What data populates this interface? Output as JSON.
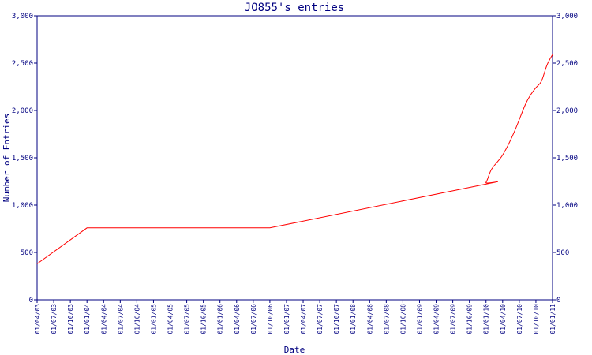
{
  "chart_data": {
    "type": "line",
    "title": "JO855's entries",
    "xlabel": "Date",
    "ylabel": "Number of Entries",
    "ylim": [
      0,
      3000
    ],
    "yticks": [
      0,
      500,
      1000,
      1500,
      2000,
      2500,
      3000
    ],
    "ytick_labels": [
      "0",
      "500",
      "1,000",
      "1,500",
      "2,000",
      "2,500",
      "3,000"
    ],
    "xticks": [
      "01/04/03",
      "01/07/03",
      "01/10/03",
      "01/01/04",
      "01/04/04",
      "01/07/04",
      "01/10/04",
      "01/01/05",
      "01/04/05",
      "01/07/05",
      "01/10/05",
      "01/01/06",
      "01/04/06",
      "01/07/06",
      "01/10/06",
      "01/01/07",
      "01/04/07",
      "01/07/07",
      "01/10/07",
      "01/01/08",
      "01/04/08",
      "01/07/08",
      "01/10/08",
      "01/01/09",
      "01/04/09",
      "01/07/09",
      "01/10/09",
      "01/01/10",
      "01/04/10",
      "01/07/10",
      "01/10/10",
      "01/01/11"
    ],
    "x_range": [
      "01/04/03",
      "01/01/11"
    ],
    "grid": false,
    "series_color": "#ff0000",
    "axis_color": "#000080",
    "points": [
      {
        "x": "01/04/03",
        "y": 380
      },
      {
        "x": "01/01/04",
        "y": 760
      },
      {
        "x": "01/10/06",
        "y": 760
      },
      {
        "x": "01/12/09",
        "y": 1210
      },
      {
        "x": "01/01/10",
        "y": 1240
      },
      {
        "x": "01/02/10",
        "y": 1380
      },
      {
        "x": "01/04/10",
        "y": 1530
      },
      {
        "x": "01/06/10",
        "y": 1760
      },
      {
        "x": "01/08/10",
        "y": 2050
      },
      {
        "x": "01/09/10",
        "y": 2160
      },
      {
        "x": "01/10/10",
        "y": 2240
      },
      {
        "x": "01/11/10",
        "y": 2310
      },
      {
        "x": "01/12/10",
        "y": 2480
      },
      {
        "x": "01/01/11",
        "y": 2590
      }
    ]
  }
}
